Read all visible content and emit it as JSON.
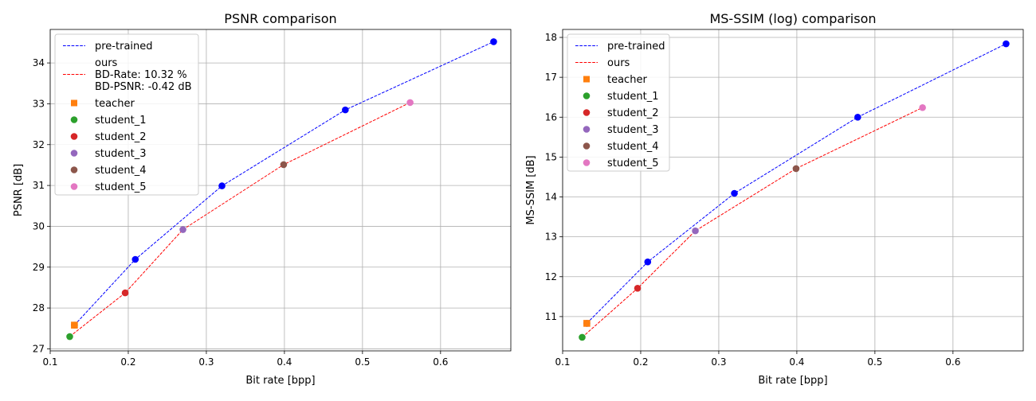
{
  "chart_data": [
    {
      "type": "line",
      "title": "PSNR comparison",
      "xlabel": "Bit rate [bpp]",
      "ylabel": "PSNR [dB]",
      "xlim": [
        0.1,
        0.69
      ],
      "ylim": [
        26.95,
        34.82
      ],
      "xticks": [
        0.1,
        0.2,
        0.3,
        0.4,
        0.5,
        0.6
      ],
      "yticks": [
        27,
        28,
        29,
        30,
        31,
        32,
        33,
        34
      ],
      "grid": true,
      "legend_position": "top-left",
      "series": [
        {
          "name": "pre-trained",
          "style": "dashed",
          "marker": "circle",
          "color": "#0000ff",
          "x": [
            0.131,
            0.209,
            0.32,
            0.478,
            0.668
          ],
          "y": [
            27.58,
            29.19,
            30.99,
            32.85,
            34.52
          ]
        },
        {
          "name": "ours",
          "style": "dashed",
          "marker": "none",
          "color": "#ff0000",
          "x": [
            0.125,
            0.196,
            0.27,
            0.399,
            0.561
          ],
          "y": [
            27.3,
            28.37,
            29.92,
            31.51,
            33.03
          ]
        }
      ],
      "points": [
        {
          "name": "teacher",
          "marker": "square",
          "color": "#ff7f0e",
          "x": 0.131,
          "y": 27.58
        },
        {
          "name": "student_1",
          "marker": "circle",
          "color": "#2ca02c",
          "x": 0.125,
          "y": 27.3
        },
        {
          "name": "student_2",
          "marker": "circle",
          "color": "#d62728",
          "x": 0.196,
          "y": 28.37
        },
        {
          "name": "student_3",
          "marker": "circle",
          "color": "#9467bd",
          "x": 0.27,
          "y": 29.92
        },
        {
          "name": "student_4",
          "marker": "circle",
          "color": "#8c564b",
          "x": 0.399,
          "y": 31.51
        },
        {
          "name": "student_5",
          "marker": "circle",
          "color": "#e377c2",
          "x": 0.561,
          "y": 33.03
        }
      ],
      "legend": [
        {
          "label": "pre-trained",
          "kind": "line",
          "color": "#0000ff"
        },
        {
          "label": "ours\nBD-Rate: 10.32 %\nBD-PSNR: -0.42 dB",
          "kind": "line",
          "color": "#ff0000"
        },
        {
          "label": "teacher",
          "kind": "square",
          "color": "#ff7f0e"
        },
        {
          "label": "student_1",
          "kind": "circle",
          "color": "#2ca02c"
        },
        {
          "label": "student_2",
          "kind": "circle",
          "color": "#d62728"
        },
        {
          "label": "student_3",
          "kind": "circle",
          "color": "#9467bd"
        },
        {
          "label": "student_4",
          "kind": "circle",
          "color": "#8c564b"
        },
        {
          "label": "student_5",
          "kind": "circle",
          "color": "#e377c2"
        }
      ]
    },
    {
      "type": "line",
      "title": "MS-SSIM (log) comparison",
      "xlabel": "Bit rate [bpp]",
      "ylabel": "MS-SSIM [dB]",
      "xlim": [
        0.1,
        0.69
      ],
      "ylim": [
        10.14,
        18.2
      ],
      "xticks": [
        0.1,
        0.2,
        0.3,
        0.4,
        0.5,
        0.6
      ],
      "yticks": [
        11,
        12,
        13,
        14,
        15,
        16,
        17,
        18
      ],
      "grid": true,
      "legend_position": "top-left",
      "series": [
        {
          "name": "pre-trained",
          "style": "dashed",
          "marker": "circle",
          "color": "#0000ff",
          "x": [
            0.131,
            0.209,
            0.32,
            0.478,
            0.668
          ],
          "y": [
            10.83,
            12.37,
            14.09,
            16.0,
            17.84
          ]
        },
        {
          "name": "ours",
          "style": "dashed",
          "marker": "none",
          "color": "#ff0000",
          "x": [
            0.125,
            0.196,
            0.27,
            0.399,
            0.561
          ],
          "y": [
            10.48,
            11.71,
            13.15,
            14.71,
            16.24
          ]
        }
      ],
      "points": [
        {
          "name": "teacher",
          "marker": "square",
          "color": "#ff7f0e",
          "x": 0.131,
          "y": 10.83
        },
        {
          "name": "student_1",
          "marker": "circle",
          "color": "#2ca02c",
          "x": 0.125,
          "y": 10.48
        },
        {
          "name": "student_2",
          "marker": "circle",
          "color": "#d62728",
          "x": 0.196,
          "y": 11.71
        },
        {
          "name": "student_3",
          "marker": "circle",
          "color": "#9467bd",
          "x": 0.27,
          "y": 13.15
        },
        {
          "name": "student_4",
          "marker": "circle",
          "color": "#8c564b",
          "x": 0.399,
          "y": 14.71
        },
        {
          "name": "student_5",
          "marker": "circle",
          "color": "#e377c2",
          "x": 0.561,
          "y": 16.24
        }
      ],
      "legend": [
        {
          "label": "pre-trained",
          "kind": "line",
          "color": "#0000ff"
        },
        {
          "label": "ours",
          "kind": "line",
          "color": "#ff0000"
        },
        {
          "label": "teacher",
          "kind": "square",
          "color": "#ff7f0e"
        },
        {
          "label": "student_1",
          "kind": "circle",
          "color": "#2ca02c"
        },
        {
          "label": "student_2",
          "kind": "circle",
          "color": "#d62728"
        },
        {
          "label": "student_3",
          "kind": "circle",
          "color": "#9467bd"
        },
        {
          "label": "student_4",
          "kind": "circle",
          "color": "#8c564b"
        },
        {
          "label": "student_5",
          "kind": "circle",
          "color": "#e377c2"
        }
      ]
    }
  ]
}
